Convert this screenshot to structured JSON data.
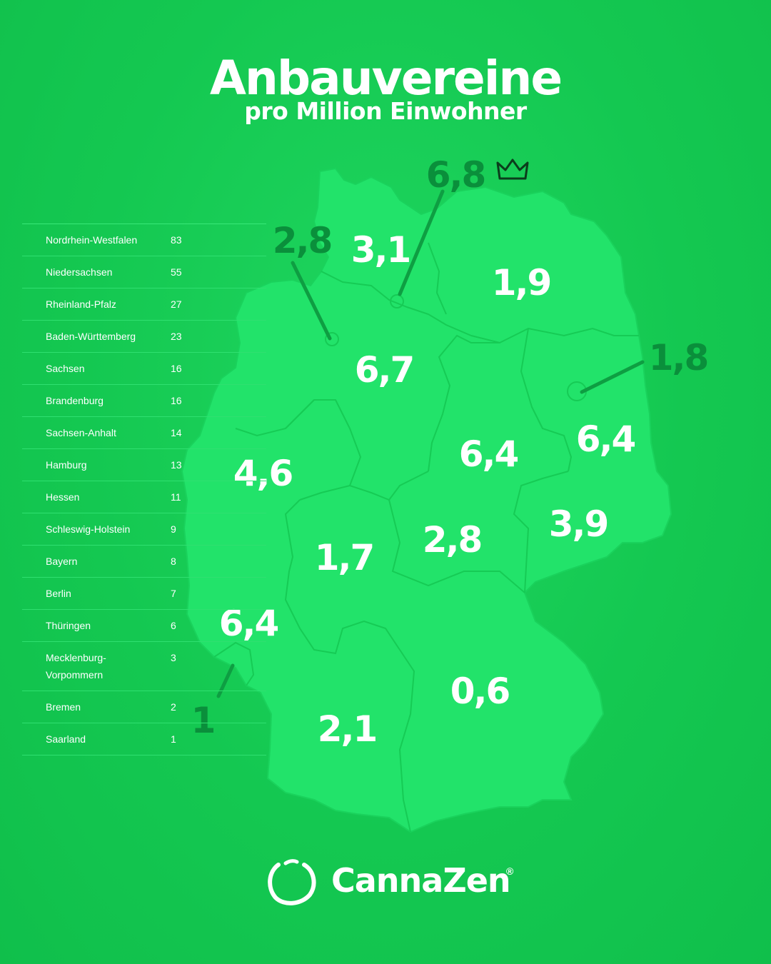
{
  "header": {
    "title": "Anbauvereine",
    "subtitle": "pro Million Einwohner"
  },
  "colors": {
    "background": "#14c851",
    "map_fill": "#22e36a",
    "map_border": "#14c851",
    "label_white": "#ffffff",
    "label_dark": "#0a8f3b",
    "leader_line": "#0e9e42"
  },
  "map_labels": [
    {
      "state": "Schleswig-Holstein",
      "value": "3,1",
      "style": "white"
    },
    {
      "state": "Hamburg",
      "value": "6,8",
      "style": "dark",
      "icon": "crown-icon"
    },
    {
      "state": "Bremen",
      "value": "2,8",
      "style": "dark"
    },
    {
      "state": "Mecklenburg-Vorpommern",
      "value": "1,9",
      "style": "white"
    },
    {
      "state": "Berlin",
      "value": "1,8",
      "style": "dark"
    },
    {
      "state": "Niedersachsen",
      "value": "6,7",
      "style": "white"
    },
    {
      "state": "Sachsen-Anhalt",
      "value": "6,4",
      "style": "white"
    },
    {
      "state": "Brandenburg",
      "value": "6,4",
      "style": "white"
    },
    {
      "state": "Nordrhein-Westfalen",
      "value": "4,6",
      "style": "white"
    },
    {
      "state": "Sachsen",
      "value": "3,9",
      "style": "white"
    },
    {
      "state": "Thüringen",
      "value": "2,8",
      "style": "white"
    },
    {
      "state": "Hessen",
      "value": "1,7",
      "style": "white"
    },
    {
      "state": "Rheinland-Pfalz",
      "value": "6,4",
      "style": "white"
    },
    {
      "state": "Saarland",
      "value": "1",
      "style": "dark"
    },
    {
      "state": "Bayern",
      "value": "0,6",
      "style": "white"
    },
    {
      "state": "Baden-Württemberg",
      "value": "2,1",
      "style": "white"
    }
  ],
  "table": {
    "rows": [
      {
        "name": "Nordrhein-Westfalen",
        "value": "83"
      },
      {
        "name": "Niedersachsen",
        "value": "55"
      },
      {
        "name": "Rheinland-Pfalz",
        "value": "27"
      },
      {
        "name": "Baden-Württemberg",
        "value": "23"
      },
      {
        "name": "Sachsen",
        "value": "16"
      },
      {
        "name": "Brandenburg",
        "value": "16"
      },
      {
        "name": "Sachsen-Anhalt",
        "value": "14"
      },
      {
        "name": "Hamburg",
        "value": "13"
      },
      {
        "name": "Hessen",
        "value": "11"
      },
      {
        "name": "Schleswig-Holstein",
        "value": "9"
      },
      {
        "name": "Bayern",
        "value": "8"
      },
      {
        "name": "Berlin",
        "value": "7"
      },
      {
        "name": "Thüringen",
        "value": "6"
      },
      {
        "name": "Mecklenburg-Vorpommern",
        "value": "3"
      },
      {
        "name": "Bremen",
        "value": "2"
      },
      {
        "name": "Saarland",
        "value": "1"
      }
    ]
  },
  "brand": {
    "name": "CannaZen",
    "registered_mark": "®",
    "logo_icon": "leaf-ring-icon"
  }
}
